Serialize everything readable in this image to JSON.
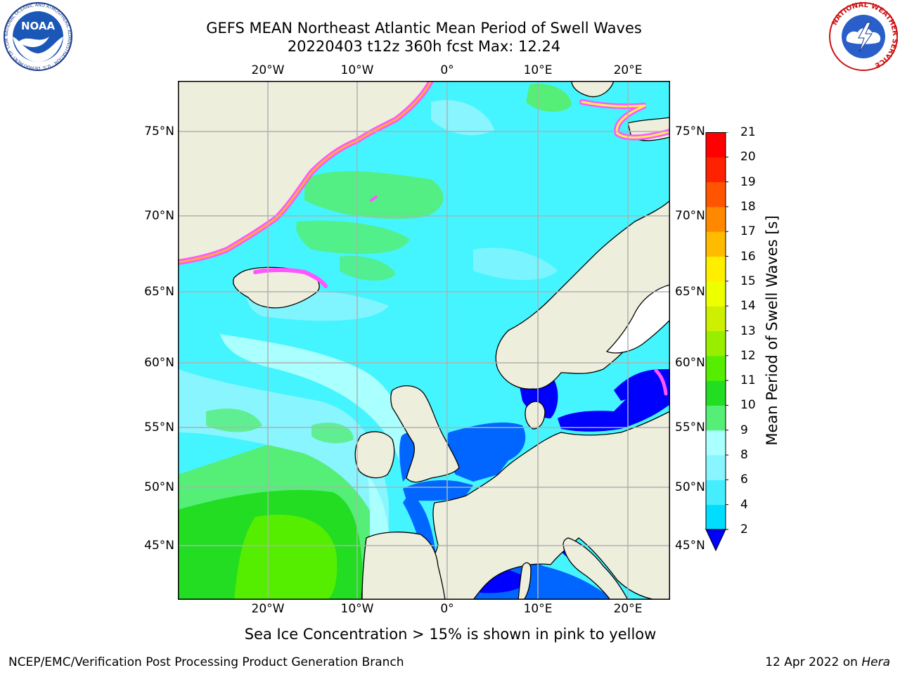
{
  "title": {
    "line1": "GEFS MEAN Northeast Atlantic Mean Period of Swell Waves",
    "line2": "20220403 t12z 360h fcst   Max: 12.24"
  },
  "map": {
    "projection": "latitude-longitude",
    "lon_ticks": [
      "20°W",
      "10°W",
      "0°",
      "10°E",
      "20°E"
    ],
    "lat_ticks": [
      "75°N",
      "70°N",
      "65°N",
      "60°N",
      "55°N",
      "50°N",
      "45°N"
    ],
    "land_color": "#eeeedd",
    "missing_color": "#ffffff",
    "gridline_color": "#b0b0b0",
    "coast_color": "#000000",
    "ice_colors": [
      "#ff55ff",
      "#ffaa44",
      "#ffee55"
    ]
  },
  "colorbar": {
    "label": "Mean Period of Swell Waves [s]",
    "ticks": [
      "2",
      "4",
      "6",
      "8",
      "9",
      "10",
      "11",
      "12",
      "13",
      "14",
      "15",
      "16",
      "17",
      "18",
      "19",
      "20",
      "21"
    ],
    "colors": [
      "#0066ff",
      "#00ddff",
      "#44eeff",
      "#88f5ff",
      "#aaffff",
      "#55ee77",
      "#22dd22",
      "#55ee00",
      "#99ee00",
      "#ccf000",
      "#eeff00",
      "#ffee00",
      "#ffbb00",
      "#ff8800",
      "#ff5500",
      "#ff2200",
      "#ff0000"
    ],
    "under_color": "#0000ff"
  },
  "note": "Sea Ice Concentration > 15% is shown in pink to yellow",
  "footer": {
    "left": "NCEP/EMC/Verification Post Processing Product Generation Branch",
    "date": "12 Apr 2022 on",
    "machine": "Hera"
  },
  "logos": {
    "noaa_text": "NOAA",
    "noaa_ring": "NATIONAL OCEANIC AND ATMOSPHERIC ADMINISTRATION · U.S. DEPARTMENT OF COMMERCE",
    "nws_ring": "NATIONAL WEATHER SERVICE"
  }
}
